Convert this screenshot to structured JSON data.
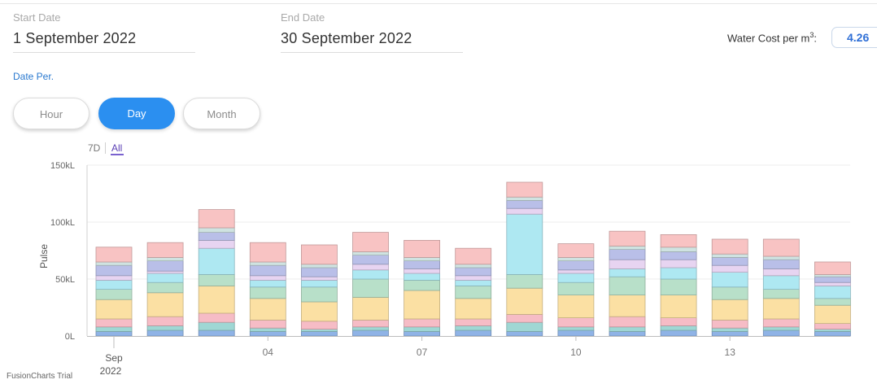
{
  "start_date": {
    "label": "Start Date",
    "value": "1 September 2022"
  },
  "end_date": {
    "label": "End Date",
    "value": "30 September 2022"
  },
  "water_cost": {
    "label": "Water Cost per m",
    "superscript": "3",
    "suffix": ":",
    "value": "4.26"
  },
  "date_period": {
    "label": "Date Per.",
    "options": [
      {
        "label": "Hour",
        "selected": false
      },
      {
        "label": "Day",
        "selected": true
      },
      {
        "label": "Month",
        "selected": false
      }
    ]
  },
  "range_selector": {
    "option_7d": "7D",
    "option_all": "All",
    "selected": "All"
  },
  "trial_text": "FusionCharts Trial",
  "chart_data": {
    "type": "bar",
    "stacked": true,
    "ylabel": "Pulse",
    "y_ticks": [
      "0L",
      "50kL",
      "100kL",
      "150kL"
    ],
    "ylim": [
      0,
      150000
    ],
    "x_ticks": [
      {
        "day": 1,
        "label": "Sep",
        "sublabel": "2022"
      },
      {
        "day": 4,
        "label": "04"
      },
      {
        "day": 7,
        "label": "07"
      },
      {
        "day": 10,
        "label": "10"
      },
      {
        "day": 13,
        "label": "13"
      }
    ],
    "categories": [
      "2022-09-01",
      "2022-09-02",
      "2022-09-03",
      "2022-09-04",
      "2022-09-05",
      "2022-09-06",
      "2022-09-07",
      "2022-09-08",
      "2022-09-09",
      "2022-09-10",
      "2022-09-11",
      "2022-09-12",
      "2022-09-13",
      "2022-09-14",
      "2022-09-15"
    ],
    "colors": [
      "#8fb3e6",
      "#9fd7d4",
      "#f6bcc6",
      "#fbe0a3",
      "#b8e0c9",
      "#aee8f2",
      "#e7d4f1",
      "#b9bfe8",
      "#cfe3e1",
      "#f8c3c3"
    ],
    "series": [
      {
        "values": [
          4000,
          5000,
          5000,
          4000,
          4000,
          5000,
          4000,
          5000,
          4000,
          5000,
          4000,
          5000,
          4000,
          5000,
          4000
        ]
      },
      {
        "values": [
          4000,
          4000,
          7000,
          3000,
          2000,
          3000,
          4000,
          4000,
          8000,
          3000,
          4000,
          4000,
          3000,
          3000,
          2000
        ]
      },
      {
        "values": [
          7000,
          8000,
          8000,
          7000,
          7000,
          6000,
          7000,
          6000,
          7000,
          8000,
          9000,
          7000,
          7000,
          7000,
          5000
        ]
      },
      {
        "values": [
          17000,
          21000,
          24000,
          19000,
          17000,
          20000,
          25000,
          18000,
          23000,
          20000,
          19000,
          20000,
          18000,
          18000,
          16000
        ]
      },
      {
        "values": [
          9000,
          9000,
          10000,
          10000,
          13000,
          16000,
          9000,
          11000,
          12000,
          11000,
          16000,
          14000,
          11000,
          8000,
          6000
        ]
      },
      {
        "values": [
          8000,
          8000,
          23000,
          6000,
          6000,
          8000,
          6000,
          5000,
          53000,
          8000,
          7000,
          10000,
          13000,
          12000,
          11000
        ]
      },
      {
        "values": [
          4000,
          2000,
          7000,
          4000,
          3000,
          5000,
          4000,
          4000,
          5000,
          3000,
          8000,
          7000,
          6000,
          6000,
          3000
        ]
      },
      {
        "values": [
          9000,
          9000,
          7000,
          9000,
          8000,
          8000,
          7000,
          7000,
          7000,
          8000,
          9000,
          7000,
          7000,
          8000,
          5000
        ]
      },
      {
        "values": [
          3000,
          3000,
          4000,
          3000,
          3000,
          3000,
          3000,
          3000,
          3000,
          3000,
          3000,
          4000,
          3000,
          3000,
          2000
        ]
      },
      {
        "values": [
          13000,
          13000,
          16000,
          17000,
          17000,
          17000,
          15000,
          14000,
          13000,
          12000,
          13000,
          11000,
          13000,
          15000,
          11000
        ]
      }
    ]
  }
}
